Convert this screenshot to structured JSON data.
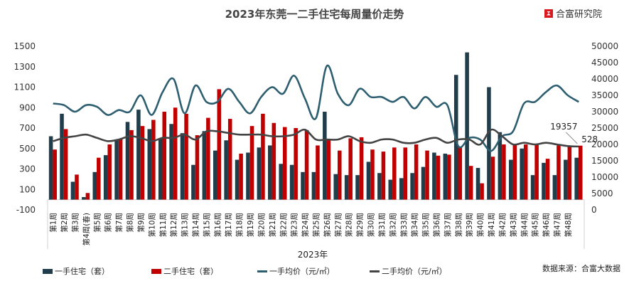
{
  "title": "2023年东莞一二手住宅每周量价走势",
  "brand": "合富研究院",
  "source": "数据来源：合富大数据",
  "colors": {
    "new_units": "#1f3d4a",
    "resale_units": "#c00000",
    "new_price": "#2e5f70",
    "resale_price": "#444444"
  },
  "chart_data": {
    "type": "bar+line",
    "title": "2023年东莞一二手住宅每周量价走势",
    "xlabel": "2023年",
    "categories": [
      "第1周",
      "第2周",
      "第3周",
      "第4周(春)",
      "第5周",
      "第6周",
      "第7周",
      "第8周",
      "第9周",
      "第10周",
      "第11周",
      "第12周",
      "第13周",
      "第14周",
      "第15周",
      "第16周",
      "第17周",
      "第18周",
      "第19周",
      "第20周",
      "第21周",
      "第22周",
      "第23周",
      "第24周",
      "第25周",
      "第26周",
      "第27周",
      "第28周",
      "第29周",
      "第30周",
      "第31周",
      "第32周",
      "第33周",
      "第34周",
      "第35周",
      "第36周",
      "第37周",
      "第38周",
      "第39周",
      "第40周",
      "第41周",
      "第42周",
      "第43周",
      "第44周",
      "第45周",
      "第46周",
      "第47周",
      "第48周",
      ""
    ],
    "left_axis": {
      "ylim": [
        -100,
        1500
      ],
      "ticks": [
        -100,
        100,
        300,
        500,
        700,
        900,
        1100,
        1300,
        1500
      ]
    },
    "right_axis": {
      "ylim": [
        0,
        50000
      ],
      "ticks": [
        0,
        5000,
        10000,
        15000,
        20000,
        25000,
        30000,
        35000,
        40000,
        45000,
        50000
      ]
    },
    "series": [
      {
        "name": "一手住宅（套）",
        "type": "bar",
        "axis": "left",
        "values": [
          620,
          840,
          175,
          25,
          270,
          435,
          580,
          760,
          880,
          690,
          600,
          740,
          650,
          340,
          670,
          480,
          580,
          390,
          460,
          510,
          530,
          350,
          340,
          270,
          270,
          860,
          250,
          240,
          240,
          370,
          260,
          195,
          210,
          260,
          320,
          460,
          450,
          1220,
          1440,
          310,
          1100,
          660,
          390,
          500,
          240,
          360,
          240,
          390,
          410
        ]
      },
      {
        "name": "二手住宅（套）",
        "type": "bar",
        "axis": "left",
        "values": [
          490,
          690,
          245,
          65,
          410,
          540,
          590,
          680,
          720,
          780,
          860,
          900,
          840,
          630,
          800,
          1080,
          790,
          450,
          720,
          840,
          750,
          710,
          700,
          680,
          530,
          590,
          480,
          600,
          610,
          490,
          470,
          510,
          510,
          540,
          480,
          430,
          440,
          510,
          330,
          160,
          420,
          540,
          540,
          540,
          540,
          400,
          530,
          520,
          528
        ]
      },
      {
        "name": "一手均价（元/㎡）",
        "type": "line",
        "axis": "right",
        "values": [
          32500,
          32000,
          30000,
          32000,
          31500,
          29000,
          30500,
          30000,
          35000,
          29000,
          36000,
          40000,
          29500,
          38000,
          33000,
          33000,
          37000,
          33000,
          29500,
          34500,
          37500,
          35500,
          41000,
          34000,
          28000,
          44000,
          35500,
          32000,
          37000,
          34500,
          34500,
          33000,
          34500,
          31000,
          34500,
          31500,
          32000,
          19500,
          22000,
          21500,
          18000,
          22500,
          24000,
          32500,
          33000,
          36000,
          38000,
          35000,
          33000
        ]
      },
      {
        "name": "二手均价（元/㎡）",
        "type": "line",
        "axis": "right",
        "values": [
          21000,
          22000,
          22500,
          23000,
          22000,
          21000,
          21500,
          22500,
          22000,
          21000,
          22000,
          22000,
          23000,
          21500,
          24000,
          24000,
          23500,
          23000,
          23000,
          23000,
          22500,
          22500,
          23000,
          24500,
          21500,
          21500,
          21500,
          22500,
          21000,
          20500,
          21500,
          21500,
          20500,
          20500,
          21500,
          22000,
          20500,
          21500,
          21500,
          20000,
          24500,
          22500,
          20000,
          20500,
          20000,
          20500,
          20000,
          19500,
          19357
        ]
      }
    ],
    "annotations": [
      "19357",
      "528"
    ],
    "legend": "bottom",
    "grid": false
  }
}
